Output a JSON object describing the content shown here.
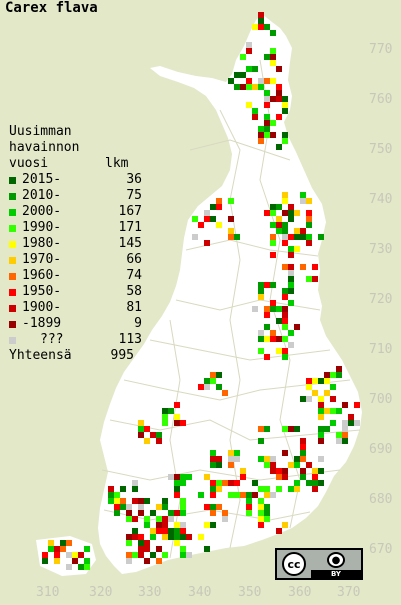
{
  "title": "Carex flava",
  "legend": {
    "header_line1": "Uusimman",
    "header_line2": "havainnon",
    "header_col1": "vuosi",
    "header_col2": "lkm",
    "entries": [
      {
        "label": "2015-",
        "count": "36",
        "color": "#006600"
      },
      {
        "label": "2010-",
        "count": "75",
        "color": "#009900"
      },
      {
        "label": "2000-",
        "count": "167",
        "color": "#00cc00"
      },
      {
        "label": "1990-",
        "count": "171",
        "color": "#33ff00"
      },
      {
        "label": "1980-",
        "count": "145",
        "color": "#ffff00"
      },
      {
        "label": "1970-",
        "count": "66",
        "color": "#ffcc00"
      },
      {
        "label": "1960-",
        "count": "74",
        "color": "#ff6600"
      },
      {
        "label": "1950-",
        "count": "58",
        "color": "#ff0000"
      },
      {
        "label": "1900-",
        "count": "81",
        "color": "#cc0000"
      },
      {
        "label": "-1899",
        "count": "9",
        "color": "#990000"
      },
      {
        "label": "???",
        "count": "113",
        "color": "#cccccc"
      }
    ],
    "total_label": "Yhteensä",
    "total_count": "995"
  },
  "axes": {
    "x_ticks": [
      "310",
      "320",
      "330",
      "340",
      "350",
      "360",
      "370"
    ],
    "y_ticks": [
      "770",
      "760",
      "750",
      "740",
      "730",
      "720",
      "710",
      "700",
      "690",
      "680",
      "670"
    ]
  },
  "colors": {
    "background": "#e3e8c9",
    "land": "#ffffff",
    "borders": "#d9d9c0",
    "axis_labels": "#c8c8b8"
  },
  "license_badge": {
    "cc": "cc",
    "by": "BY",
    "icons": [
      "cc-icon",
      "person-icon"
    ]
  }
}
